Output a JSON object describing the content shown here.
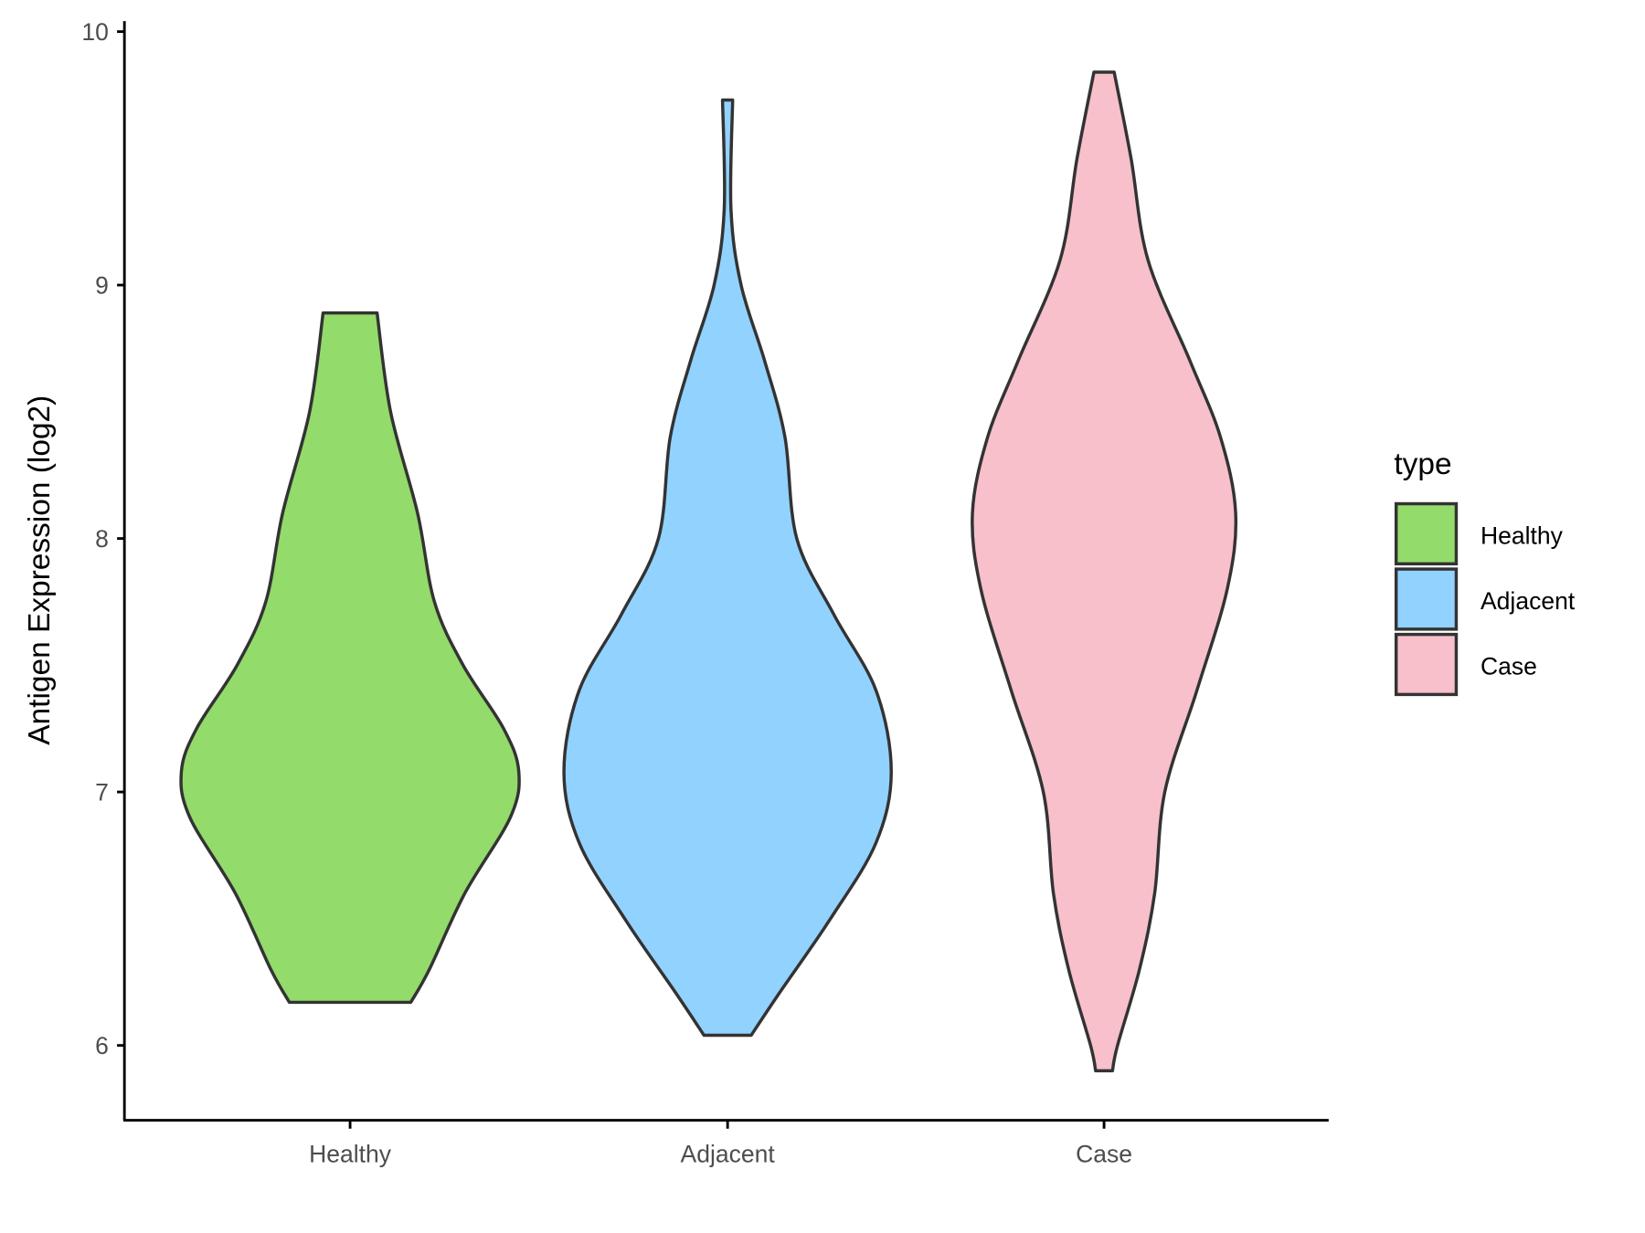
{
  "chart_data": {
    "type": "violin",
    "title": "",
    "xlabel": "",
    "ylabel": "Antigen Expression (log2)",
    "ylim": [
      5.7,
      10.05
    ],
    "yticks": [
      6,
      7,
      8,
      9,
      10
    ],
    "ytick_labels": [
      "6",
      "7",
      "8",
      "9",
      "10"
    ],
    "categories": [
      "Healthy",
      "Adjacent",
      "Case"
    ],
    "grid": false,
    "legend": {
      "title": "type",
      "placement": "right",
      "entries": [
        "Healthy",
        "Adjacent",
        "Case"
      ]
    },
    "colors": {
      "Healthy": "#93DB6A",
      "Adjacent": "#92D2FF",
      "Case": "#F7C0CB",
      "outline": "#333333"
    },
    "series": [
      {
        "name": "Healthy",
        "min": 6.17,
        "max": 8.89,
        "profile": [
          [
            8.89,
            0.16
          ],
          [
            8.5,
            0.24
          ],
          [
            8.1,
            0.4
          ],
          [
            7.75,
            0.5
          ],
          [
            7.5,
            0.67
          ],
          [
            7.25,
            0.91
          ],
          [
            7.08,
            1.0
          ],
          [
            6.9,
            0.95
          ],
          [
            6.6,
            0.68
          ],
          [
            6.3,
            0.47
          ],
          [
            6.17,
            0.36
          ]
        ]
      },
      {
        "name": "Adjacent",
        "min": 6.04,
        "max": 9.73,
        "profile": [
          [
            9.73,
            0.03
          ],
          [
            9.3,
            0.02
          ],
          [
            9.0,
            0.08
          ],
          [
            8.7,
            0.22
          ],
          [
            8.4,
            0.34
          ],
          [
            8.0,
            0.41
          ],
          [
            7.7,
            0.63
          ],
          [
            7.4,
            0.88
          ],
          [
            7.08,
            0.97
          ],
          [
            6.8,
            0.88
          ],
          [
            6.5,
            0.61
          ],
          [
            6.2,
            0.3
          ],
          [
            6.04,
            0.14
          ]
        ]
      },
      {
        "name": "Case",
        "min": 5.9,
        "max": 9.84,
        "profile": [
          [
            9.84,
            0.06
          ],
          [
            9.5,
            0.16
          ],
          [
            9.1,
            0.26
          ],
          [
            8.7,
            0.51
          ],
          [
            8.4,
            0.69
          ],
          [
            8.1,
            0.78
          ],
          [
            7.8,
            0.73
          ],
          [
            7.4,
            0.55
          ],
          [
            7.0,
            0.36
          ],
          [
            6.6,
            0.3
          ],
          [
            6.3,
            0.21
          ],
          [
            6.0,
            0.08
          ],
          [
            5.9,
            0.05
          ]
        ]
      }
    ]
  }
}
